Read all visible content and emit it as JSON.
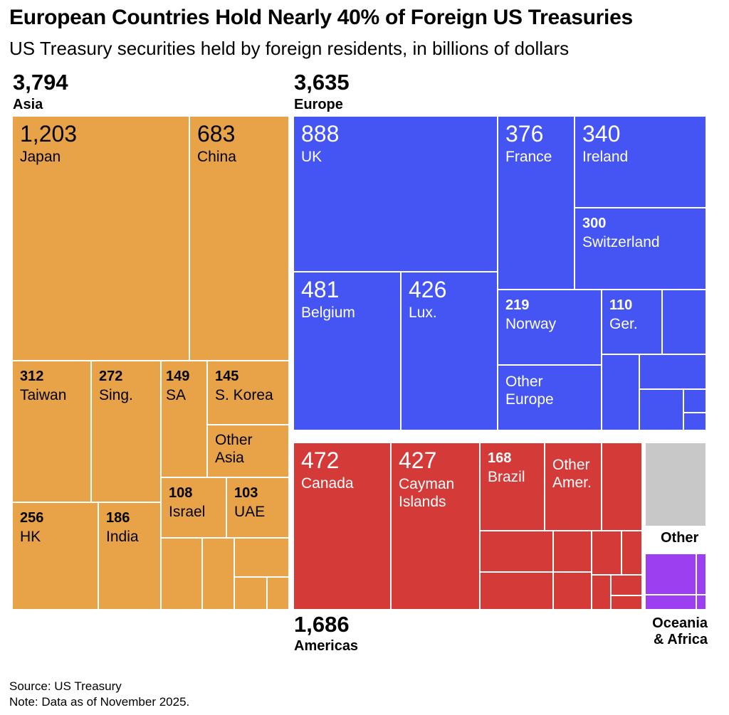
{
  "title": "European Countries Hold Nearly 40% of Foreign US Treasuries",
  "subtitle": "US Treasury securities held by foreign residents, in billions of dollars",
  "colors": {
    "asia": "#e8a247",
    "europe": "#4455f4",
    "americas": "#d43a38",
    "other": "#c8c8c8",
    "oceania": "#9c3ff0"
  },
  "chart_data": {
    "type": "treemap",
    "units": "billions of dollars",
    "regions": [
      {
        "name": "Asia",
        "total_label": "3,794",
        "total": 3794,
        "items": [
          {
            "name": "Japan",
            "value_label": "1,203",
            "value": 1203
          },
          {
            "name": "China",
            "value_label": "683",
            "value": 683
          },
          {
            "name": "Taiwan",
            "value_label": "312",
            "value": 312
          },
          {
            "name": "Sing.",
            "value_label": "272",
            "value": 272
          },
          {
            "name": "SA",
            "value_label": "149",
            "value": 149
          },
          {
            "name": "S. Korea",
            "value_label": "145",
            "value": 145
          },
          {
            "name": "Other Asia"
          },
          {
            "name": "HK",
            "value_label": "256",
            "value": 256
          },
          {
            "name": "India",
            "value_label": "186",
            "value": 186
          },
          {
            "name": "Israel",
            "value_label": "108",
            "value": 108
          },
          {
            "name": "UAE",
            "value_label": "103",
            "value": 103
          }
        ]
      },
      {
        "name": "Europe",
        "total_label": "3,635",
        "total": 3635,
        "items": [
          {
            "name": "UK",
            "value_label": "888",
            "value": 888
          },
          {
            "name": "France",
            "value_label": "376",
            "value": 376
          },
          {
            "name": "Ireland",
            "value_label": "340",
            "value": 340
          },
          {
            "name": "Switzerland",
            "value_label": "300",
            "value": 300
          },
          {
            "name": "Belgium",
            "value_label": "481",
            "value": 481
          },
          {
            "name": "Lux.",
            "value_label": "426",
            "value": 426
          },
          {
            "name": "Norway",
            "value_label": "219",
            "value": 219
          },
          {
            "name": "Ger.",
            "value_label": "110",
            "value": 110
          },
          {
            "name": "Other Europe"
          }
        ]
      },
      {
        "name": "Americas",
        "total_label": "1,686",
        "total": 1686,
        "items": [
          {
            "name": "Canada",
            "value_label": "472",
            "value": 472
          },
          {
            "name": "Cayman Islands",
            "value_label": "427",
            "value": 427
          },
          {
            "name": "Brazil",
            "value_label": "168",
            "value": 168
          },
          {
            "name": "Other Amer."
          }
        ]
      },
      {
        "name": "Other",
        "items": []
      },
      {
        "name": "Oceania & Africa",
        "items": []
      }
    ]
  },
  "footer": {
    "source": "Source: US Treasury",
    "note": "Note: Data as of November 2025."
  }
}
